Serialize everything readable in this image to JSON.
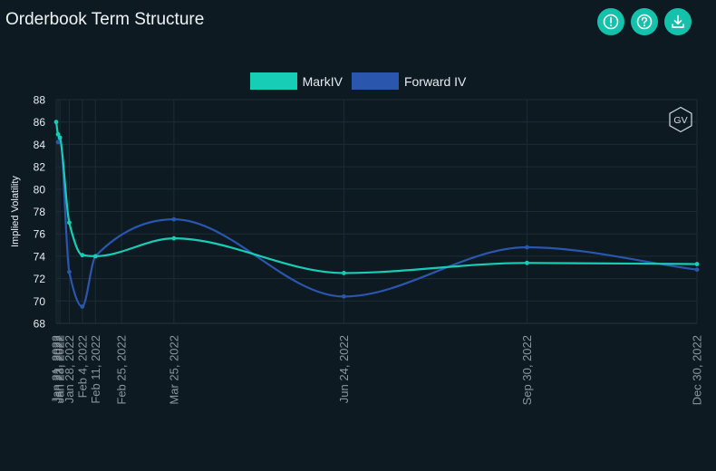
{
  "header": {
    "title": "Orderbook Term Structure",
    "buttons": [
      {
        "name": "info-button",
        "icon": "alert-circle-icon"
      },
      {
        "name": "help-button",
        "icon": "question-circle-icon"
      },
      {
        "name": "download-button",
        "icon": "download-icon"
      }
    ]
  },
  "colors": {
    "markiv": "#18cdb5",
    "forward": "#2b56ad",
    "accent": "#14c2ac"
  },
  "badge": {
    "text": "GV"
  },
  "chart_data": {
    "type": "line",
    "title": "Orderbook Term Structure",
    "ylabel": "Implied Volatility",
    "xlabel": "",
    "ylim": [
      68,
      88
    ],
    "yticks": [
      68,
      70,
      72,
      74,
      76,
      78,
      80,
      82,
      84,
      86,
      88
    ],
    "x_type": "date",
    "xlim": [
      "2022-01-21",
      "2022-12-30"
    ],
    "x_tick_labels": [
      "Jan 21, 2022",
      "Jan 22, 2022",
      "Jan 23, 2022",
      "Jan 28, 2022",
      "Feb 4, 2022",
      "Feb 11, 2022",
      "Feb 25, 2022",
      "Mar 25, 2022",
      "Jun 24, 2022",
      "Sep 30, 2022",
      "Dec 30, 2022"
    ],
    "x_tick_dates": [
      "2022-01-21",
      "2022-01-22",
      "2022-01-23",
      "2022-01-28",
      "2022-02-04",
      "2022-02-11",
      "2022-02-25",
      "2022-03-25",
      "2022-06-24",
      "2022-09-30",
      "2022-12-30"
    ],
    "grid": true,
    "legend_position": "top-center",
    "series": [
      {
        "name": "MarkIV",
        "color": "#18cdb5",
        "points": [
          {
            "x": "2022-01-21",
            "y": 86.0
          },
          {
            "x": "2022-01-22",
            "y": 84.9
          },
          {
            "x": "2022-01-23",
            "y": 84.6
          },
          {
            "x": "2022-01-28",
            "y": 77.0
          },
          {
            "x": "2022-02-04",
            "y": 74.1
          },
          {
            "x": "2022-02-11",
            "y": 74.0
          },
          {
            "x": "2022-03-25",
            "y": 75.6
          },
          {
            "x": "2022-06-24",
            "y": 72.5
          },
          {
            "x": "2022-09-30",
            "y": 73.4
          },
          {
            "x": "2022-12-30",
            "y": 73.3
          }
        ]
      },
      {
        "name": "Forward IV",
        "color": "#2b56ad",
        "points": [
          {
            "x": "2022-01-22",
            "y": 84.2
          },
          {
            "x": "2022-01-23",
            "y": 84.6
          },
          {
            "x": "2022-01-28",
            "y": 72.6
          },
          {
            "x": "2022-02-04",
            "y": 69.5
          },
          {
            "x": "2022-02-11",
            "y": 74.0
          },
          {
            "x": "2022-03-25",
            "y": 77.3
          },
          {
            "x": "2022-06-24",
            "y": 70.4
          },
          {
            "x": "2022-09-30",
            "y": 74.8
          },
          {
            "x": "2022-12-30",
            "y": 72.8
          }
        ]
      }
    ]
  }
}
